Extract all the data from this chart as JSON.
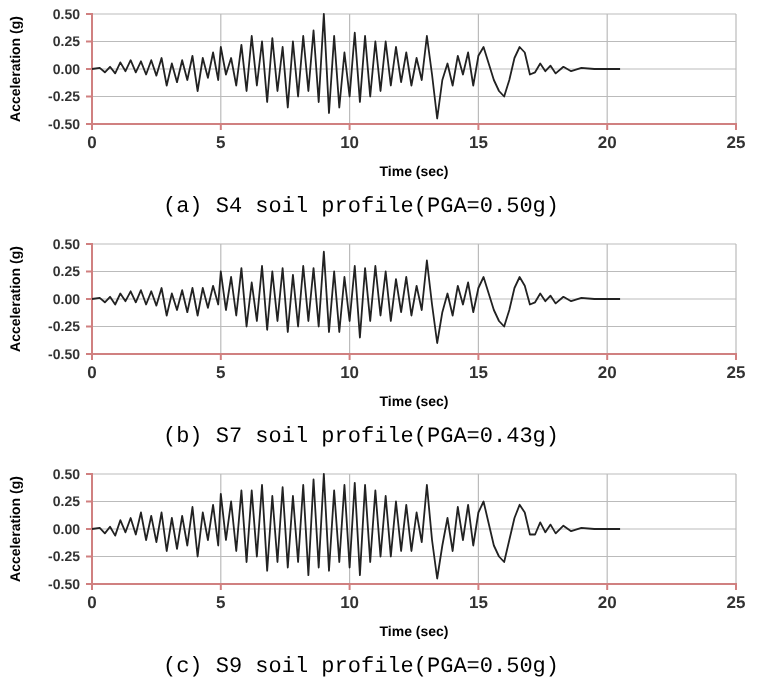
{
  "chart_data": [
    {
      "type": "line",
      "title": "(a) S4 soil profile(PGA=0.50g)",
      "xlabel": "Time (sec)",
      "ylabel": "Acceleration (g)",
      "xlim": [
        0,
        25
      ],
      "xticks": [
        0,
        5,
        10,
        15,
        20,
        25
      ],
      "ylim": [
        -0.5,
        0.5
      ],
      "yticks": [
        {
          "value": -0.5,
          "label": "-0.50"
        },
        {
          "value": -0.25,
          "label": "-0.25"
        },
        {
          "value": 0,
          "label": "0.00"
        },
        {
          "value": 0.25,
          "label": "0.25"
        },
        {
          "value": 0.5,
          "label": "0.50"
        }
      ],
      "grid": true,
      "line_style": "solid",
      "marker": "none",
      "series": [
        {
          "color": "#222222",
          "x": [
            0,
            0.3,
            0.5,
            0.7,
            0.9,
            1.1,
            1.3,
            1.5,
            1.7,
            1.9,
            2.1,
            2.3,
            2.5,
            2.7,
            2.9,
            3.1,
            3.3,
            3.5,
            3.7,
            3.9,
            4.1,
            4.3,
            4.5,
            4.7,
            4.9,
            5.0,
            5.2,
            5.4,
            5.6,
            5.8,
            6.0,
            6.2,
            6.4,
            6.6,
            6.8,
            7.0,
            7.2,
            7.4,
            7.6,
            7.8,
            8.0,
            8.2,
            8.4,
            8.6,
            8.8,
            9.0,
            9.2,
            9.4,
            9.6,
            9.8,
            10.0,
            10.2,
            10.4,
            10.6,
            10.8,
            11.0,
            11.2,
            11.4,
            11.6,
            11.8,
            12.0,
            12.2,
            12.4,
            12.6,
            12.8,
            13.0,
            13.2,
            13.4,
            13.6,
            13.8,
            14.0,
            14.2,
            14.4,
            14.6,
            14.8,
            15.0,
            15.2,
            15.4,
            15.6,
            15.8,
            16.0,
            16.2,
            16.4,
            16.6,
            16.8,
            17.0,
            17.2,
            17.4,
            17.6,
            17.8,
            18.0,
            18.3,
            18.6,
            19.0,
            19.5,
            20.5
          ],
          "values": [
            0,
            0.01,
            -0.03,
            0.02,
            -0.04,
            0.06,
            -0.02,
            0.08,
            -0.03,
            0.07,
            -0.05,
            0.08,
            -0.06,
            0.1,
            -0.15,
            0.05,
            -0.12,
            0.08,
            -0.1,
            0.12,
            -0.2,
            0.1,
            -0.08,
            0.15,
            -0.1,
            0.2,
            -0.05,
            0.1,
            -0.15,
            0.22,
            -0.2,
            0.3,
            -0.15,
            0.25,
            -0.3,
            0.28,
            -0.2,
            0.2,
            -0.35,
            0.25,
            -0.25,
            0.3,
            -0.2,
            0.35,
            -0.3,
            0.5,
            -0.4,
            0.3,
            -0.35,
            0.15,
            -0.25,
            0.33,
            -0.3,
            0.3,
            -0.25,
            0.25,
            -0.2,
            0.25,
            -0.15,
            0.2,
            -0.12,
            0.15,
            -0.15,
            0.1,
            -0.1,
            0.3,
            -0.05,
            -0.45,
            -0.1,
            0.05,
            -0.15,
            0.12,
            -0.05,
            0.15,
            -0.15,
            0.12,
            0.2,
            0.05,
            -0.1,
            -0.2,
            -0.25,
            -0.1,
            0.1,
            0.2,
            0.15,
            -0.05,
            -0.03,
            0.05,
            -0.02,
            0.03,
            -0.04,
            0.02,
            -0.02,
            0.01,
            0,
            0
          ]
        }
      ]
    },
    {
      "type": "line",
      "title": "(b) S7 soil profile(PGA=0.43g)",
      "xlabel": "Time (sec)",
      "ylabel": "Acceleration (g)",
      "xlim": [
        0,
        25
      ],
      "xticks": [
        0,
        5,
        10,
        15,
        20,
        25
      ],
      "ylim": [
        -0.5,
        0.5
      ],
      "yticks": [
        {
          "value": -0.5,
          "label": "-0.50"
        },
        {
          "value": -0.25,
          "label": "-0.25"
        },
        {
          "value": 0,
          "label": "0.00"
        },
        {
          "value": 0.25,
          "label": "0.25"
        },
        {
          "value": 0.5,
          "label": "0.50"
        }
      ],
      "grid": true,
      "line_style": "solid",
      "marker": "none",
      "series": [
        {
          "color": "#222222",
          "x": [
            0,
            0.3,
            0.5,
            0.7,
            0.9,
            1.1,
            1.3,
            1.5,
            1.7,
            1.9,
            2.1,
            2.3,
            2.5,
            2.7,
            2.9,
            3.1,
            3.3,
            3.5,
            3.7,
            3.9,
            4.1,
            4.3,
            4.5,
            4.7,
            4.9,
            5.0,
            5.2,
            5.4,
            5.6,
            5.8,
            6.0,
            6.2,
            6.4,
            6.6,
            6.8,
            7.0,
            7.2,
            7.4,
            7.6,
            7.8,
            8.0,
            8.2,
            8.4,
            8.6,
            8.8,
            9.0,
            9.2,
            9.4,
            9.6,
            9.8,
            10.0,
            10.2,
            10.4,
            10.6,
            10.8,
            11.0,
            11.2,
            11.4,
            11.6,
            11.8,
            12.0,
            12.2,
            12.4,
            12.6,
            12.8,
            13.0,
            13.2,
            13.4,
            13.6,
            13.8,
            14.0,
            14.2,
            14.4,
            14.6,
            14.8,
            15.0,
            15.2,
            15.4,
            15.6,
            15.8,
            16.0,
            16.2,
            16.4,
            16.6,
            16.8,
            17.0,
            17.2,
            17.4,
            17.6,
            17.8,
            18.0,
            18.3,
            18.6,
            19.0,
            19.5,
            20.5
          ],
          "values": [
            0,
            0.01,
            -0.03,
            0.02,
            -0.05,
            0.05,
            -0.02,
            0.07,
            -0.03,
            0.08,
            -0.05,
            0.07,
            -0.06,
            0.1,
            -0.15,
            0.05,
            -0.1,
            0.08,
            -0.12,
            0.1,
            -0.15,
            0.1,
            -0.08,
            0.12,
            -0.05,
            0.25,
            -0.1,
            0.2,
            -0.15,
            0.28,
            -0.25,
            0.15,
            -0.2,
            0.3,
            -0.28,
            0.25,
            -0.2,
            0.28,
            -0.3,
            0.22,
            -0.25,
            0.3,
            -0.2,
            0.28,
            -0.25,
            0.43,
            -0.3,
            0.25,
            -0.3,
            0.2,
            -0.2,
            0.3,
            -0.35,
            0.28,
            -0.2,
            0.3,
            -0.15,
            0.25,
            -0.2,
            0.18,
            -0.12,
            0.2,
            -0.15,
            0.12,
            -0.1,
            0.35,
            -0.05,
            -0.4,
            -0.12,
            0.05,
            -0.15,
            0.12,
            -0.05,
            0.15,
            -0.12,
            0.1,
            0.2,
            0.05,
            -0.1,
            -0.2,
            -0.25,
            -0.1,
            0.1,
            0.2,
            0.12,
            -0.05,
            -0.03,
            0.05,
            -0.02,
            0.03,
            -0.04,
            0.02,
            -0.02,
            0.01,
            0,
            0
          ]
        }
      ]
    },
    {
      "type": "line",
      "title": "(c) S9 soil profile(PGA=0.50g)",
      "xlabel": "Time (sec)",
      "ylabel": "Acceleration (g)",
      "xlim": [
        0,
        25
      ],
      "xticks": [
        0,
        5,
        10,
        15,
        20,
        25
      ],
      "ylim": [
        -0.5,
        0.5
      ],
      "yticks": [
        {
          "value": -0.5,
          "label": "-0.50"
        },
        {
          "value": -0.25,
          "label": "-0.25"
        },
        {
          "value": 0,
          "label": "0.00"
        },
        {
          "value": 0.25,
          "label": "0.25"
        },
        {
          "value": 0.5,
          "label": "0.50"
        }
      ],
      "grid": true,
      "line_style": "solid",
      "marker": "none",
      "series": [
        {
          "color": "#222222",
          "x": [
            0,
            0.3,
            0.5,
            0.7,
            0.9,
            1.1,
            1.3,
            1.5,
            1.7,
            1.9,
            2.1,
            2.3,
            2.5,
            2.7,
            2.9,
            3.1,
            3.3,
            3.5,
            3.7,
            3.9,
            4.1,
            4.3,
            4.5,
            4.7,
            4.9,
            5.0,
            5.2,
            5.4,
            5.6,
            5.8,
            6.0,
            6.2,
            6.4,
            6.6,
            6.8,
            7.0,
            7.2,
            7.4,
            7.6,
            7.8,
            8.0,
            8.2,
            8.4,
            8.6,
            8.8,
            9.0,
            9.2,
            9.4,
            9.6,
            9.8,
            10.0,
            10.2,
            10.4,
            10.6,
            10.8,
            11.0,
            11.2,
            11.4,
            11.6,
            11.8,
            12.0,
            12.2,
            12.4,
            12.6,
            12.8,
            13.0,
            13.2,
            13.4,
            13.6,
            13.8,
            14.0,
            14.2,
            14.4,
            14.6,
            14.8,
            15.0,
            15.2,
            15.4,
            15.6,
            15.8,
            16.0,
            16.2,
            16.4,
            16.6,
            16.8,
            17.0,
            17.2,
            17.4,
            17.6,
            17.8,
            18.0,
            18.3,
            18.6,
            19.0,
            19.5,
            20.5
          ],
          "values": [
            0,
            0.01,
            -0.04,
            0.02,
            -0.06,
            0.08,
            -0.03,
            0.1,
            -0.05,
            0.15,
            -0.1,
            0.12,
            -0.12,
            0.15,
            -0.2,
            0.1,
            -0.18,
            0.12,
            -0.15,
            0.2,
            -0.25,
            0.15,
            -0.1,
            0.22,
            -0.15,
            0.32,
            -0.1,
            0.25,
            -0.2,
            0.35,
            -0.3,
            0.35,
            -0.25,
            0.4,
            -0.38,
            0.3,
            -0.3,
            0.38,
            -0.35,
            0.3,
            -0.3,
            0.4,
            -0.42,
            0.45,
            -0.35,
            0.5,
            -0.38,
            0.35,
            -0.3,
            0.4,
            -0.35,
            0.42,
            -0.42,
            0.4,
            -0.3,
            0.35,
            -0.25,
            0.3,
            -0.25,
            0.25,
            -0.2,
            0.22,
            -0.2,
            0.15,
            -0.12,
            0.4,
            -0.1,
            -0.45,
            -0.15,
            0.1,
            -0.2,
            0.2,
            -0.1,
            0.22,
            -0.15,
            0.15,
            0.25,
            0.05,
            -0.15,
            -0.25,
            -0.3,
            -0.1,
            0.1,
            0.22,
            0.15,
            -0.05,
            -0.05,
            0.06,
            -0.03,
            0.04,
            -0.04,
            0.03,
            -0.02,
            0.01,
            0,
            0
          ]
        }
      ]
    }
  ]
}
